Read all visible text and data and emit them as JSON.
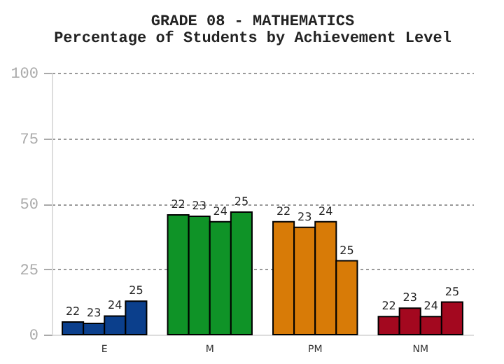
{
  "chart_data": {
    "type": "bar",
    "title": "GRADE 08 - MATHEMATICS",
    "subtitle": "Percentage of Students by Achievement Level",
    "categories": [
      "E",
      "M",
      "PM",
      "NM"
    ],
    "series": [
      {
        "name": "22",
        "colors": [
          "#0b3f8c",
          "#0f9327",
          "#d87b07",
          "#a3081f"
        ],
        "values": [
          4.8,
          45.7,
          43.1,
          6.9
        ]
      },
      {
        "name": "23",
        "colors": [
          "#0b3f8c",
          "#0f9327",
          "#d87b07",
          "#a3081f"
        ],
        "values": [
          4.3,
          45.2,
          41.0,
          10.1
        ]
      },
      {
        "name": "24",
        "colors": [
          "#0b3f8c",
          "#0f9327",
          "#d87b07",
          "#a3081f"
        ],
        "values": [
          7.1,
          43.1,
          43.1,
          6.9
        ]
      },
      {
        "name": "25",
        "colors": [
          "#0b3f8c",
          "#0f9327",
          "#d87b07",
          "#a3081f"
        ],
        "values": [
          12.8,
          46.8,
          28.2,
          12.4
        ]
      }
    ],
    "ylim": [
      0,
      100
    ],
    "yticks": [
      0,
      25,
      50,
      75,
      100
    ],
    "grid": "y"
  }
}
